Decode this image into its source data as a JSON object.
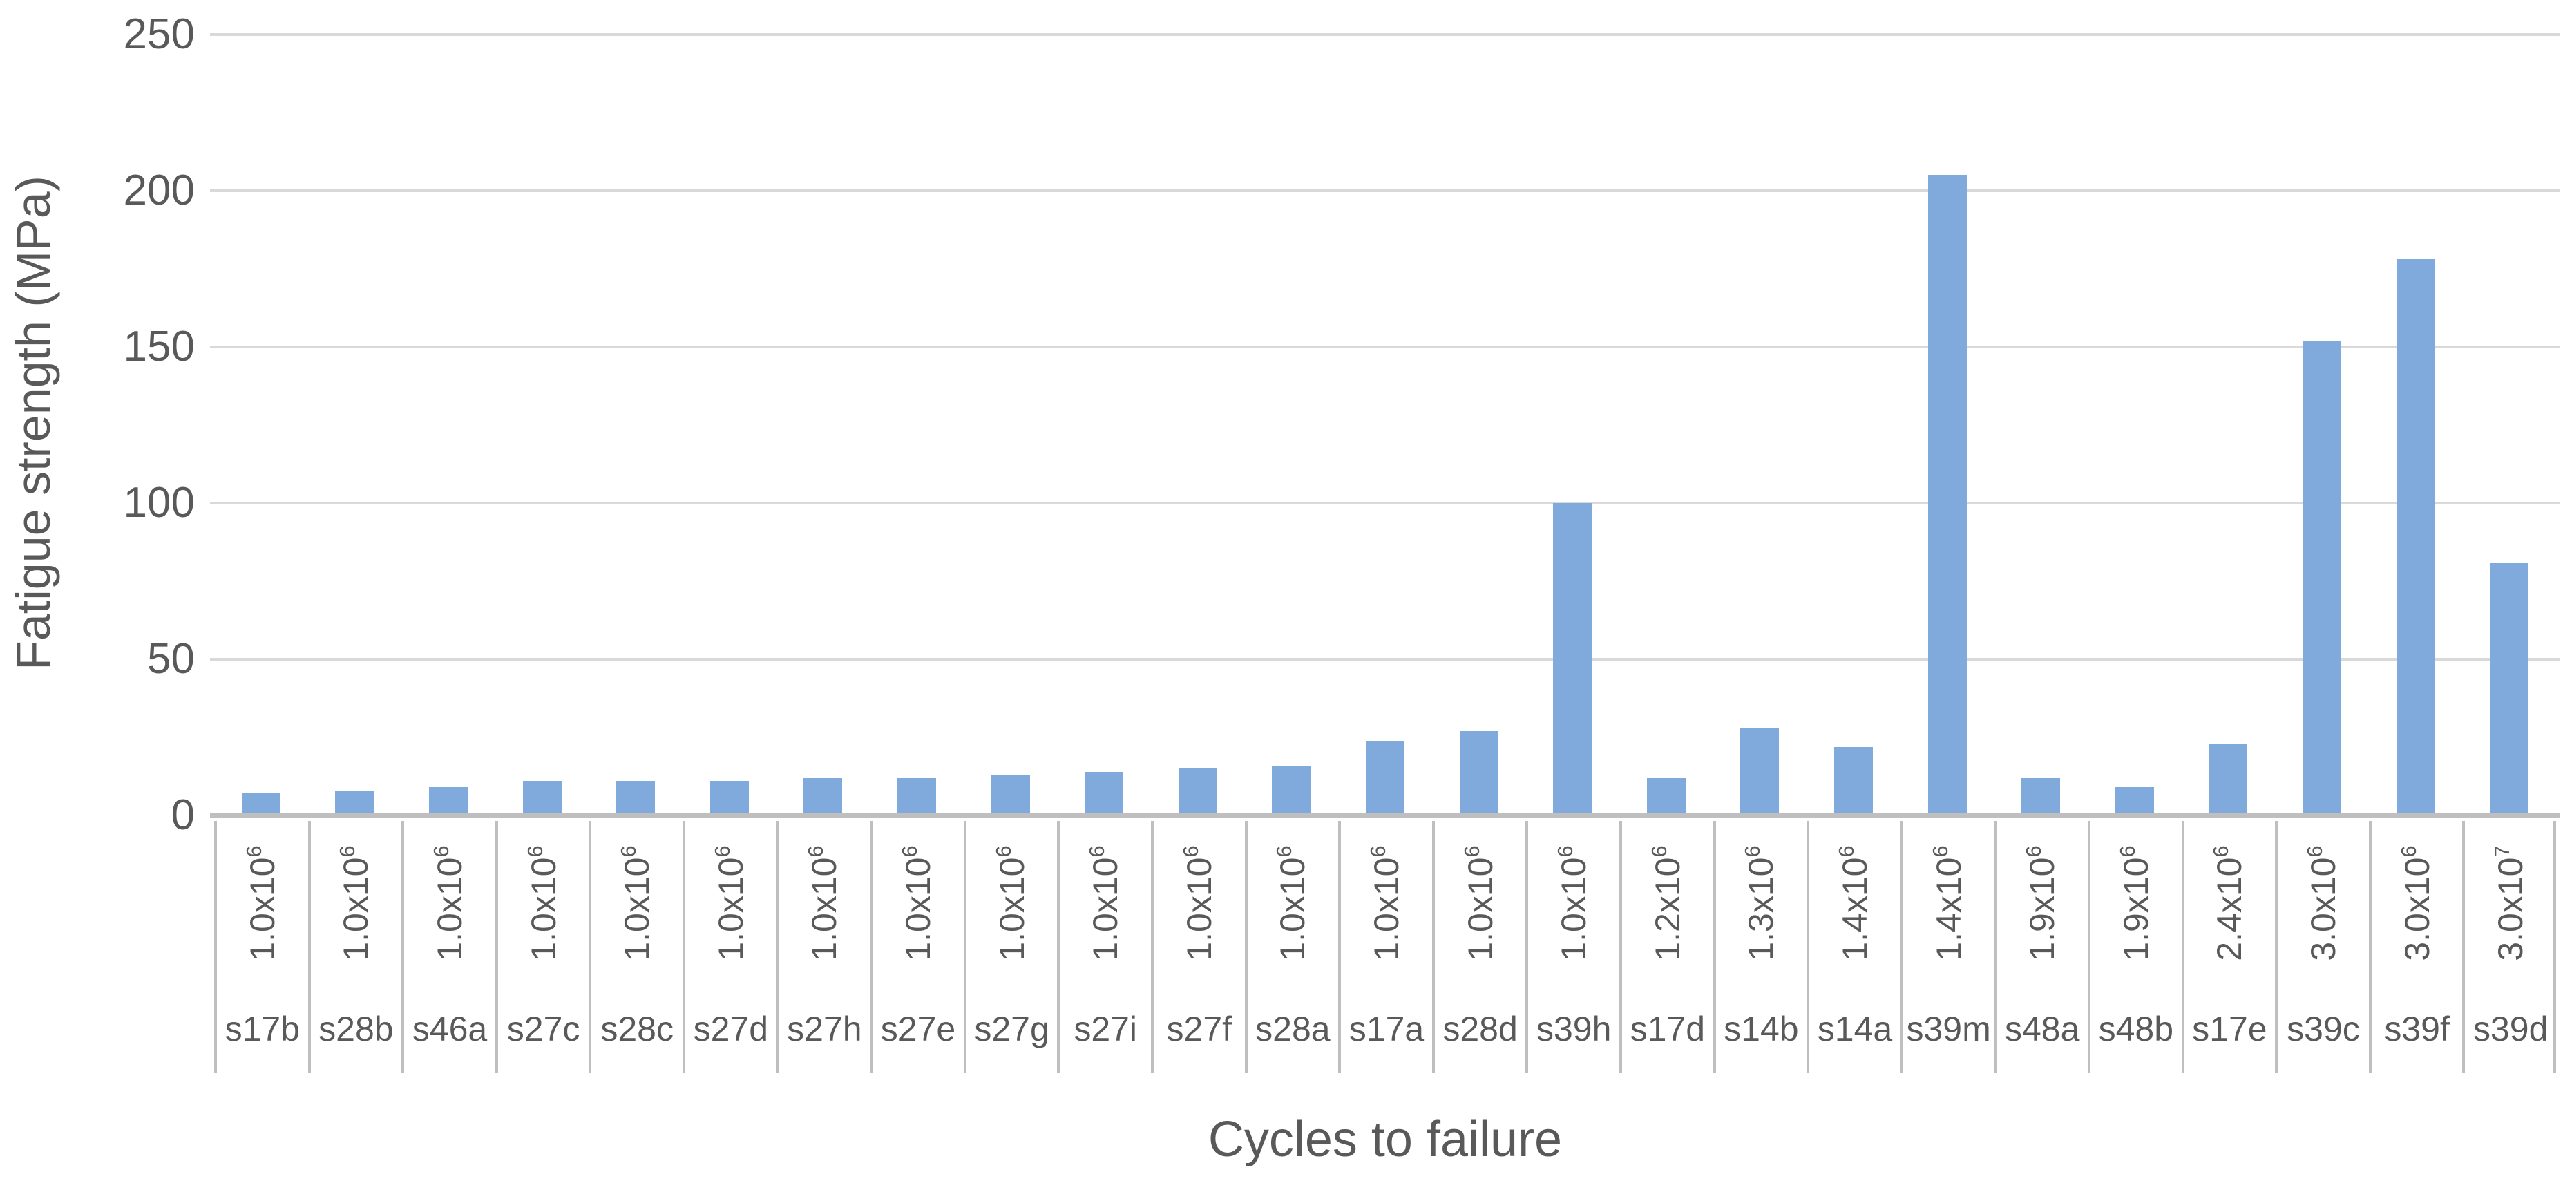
{
  "chart_data": {
    "type": "bar",
    "title": "",
    "xlabel": "Cycles to failure",
    "ylabel": "Fatigue strength (MPa)",
    "ylim": [
      0,
      250
    ],
    "yticks": [
      0,
      50,
      100,
      150,
      200,
      250
    ],
    "grid": "horizontal gridlines every 50 MPa",
    "legend_position": "none",
    "bar_color": "#81AADC",
    "x_axis_levels": [
      "cycles-to-failure label (rotated)",
      "specimen id"
    ],
    "categories": [
      "s17b",
      "s28b",
      "s46a",
      "s27c",
      "s28c",
      "s27d",
      "s27h",
      "s27e",
      "s27g",
      "s27i",
      "s27f",
      "s28a",
      "s17a",
      "s28d",
      "s39h",
      "s17d",
      "s14b",
      "s14a",
      "s39m",
      "s48a",
      "s48b",
      "s17e",
      "s39c",
      "s39f",
      "s39d"
    ],
    "cycles_labels": [
      {
        "base": "1.0x10",
        "exp": "6"
      },
      {
        "base": "1.0x10",
        "exp": "6"
      },
      {
        "base": "1.0x10",
        "exp": "6"
      },
      {
        "base": "1.0x10",
        "exp": "6"
      },
      {
        "base": "1.0x10",
        "exp": "6"
      },
      {
        "base": "1.0x10",
        "exp": "6"
      },
      {
        "base": "1.0x10",
        "exp": "6"
      },
      {
        "base": "1.0x10",
        "exp": "6"
      },
      {
        "base": "1.0x10",
        "exp": "6"
      },
      {
        "base": "1.0x10",
        "exp": "6"
      },
      {
        "base": "1.0x10",
        "exp": "6"
      },
      {
        "base": "1.0x10",
        "exp": "6"
      },
      {
        "base": "1.0x10",
        "exp": "6"
      },
      {
        "base": "1.0x10",
        "exp": "6"
      },
      {
        "base": "1.0x10",
        "exp": "6"
      },
      {
        "base": "1.2x10",
        "exp": "6"
      },
      {
        "base": "1.3x10",
        "exp": "6"
      },
      {
        "base": "1.4x10",
        "exp": "6"
      },
      {
        "base": "1.4x10",
        "exp": "6"
      },
      {
        "base": "1.9x10",
        "exp": "6"
      },
      {
        "base": "1.9x10",
        "exp": "6"
      },
      {
        "base": "2.4x10",
        "exp": "6"
      },
      {
        "base": "3.0x10",
        "exp": "6"
      },
      {
        "base": "3.0x10",
        "exp": "6"
      },
      {
        "base": "3.0x10",
        "exp": "7"
      }
    ],
    "values": [
      7,
      8,
      9,
      11,
      11,
      11,
      12,
      12,
      13,
      14,
      15,
      16,
      24,
      27,
      100,
      12,
      28,
      22,
      205,
      12,
      9,
      23,
      152,
      178,
      81
    ]
  },
  "colors": {
    "bar": "#81AADC",
    "gridline": "#D9D9D9",
    "axis_line": "#BFBFBF",
    "category_separator": "#BFBFBF",
    "text": "#595959",
    "background": "#FFFFFF"
  }
}
